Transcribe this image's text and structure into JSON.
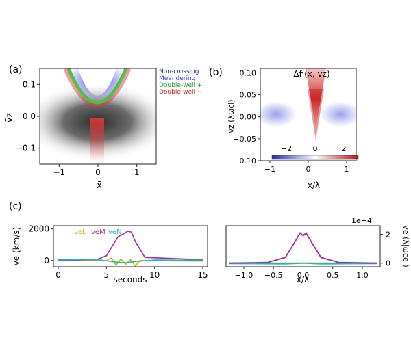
{
  "figure": {
    "panel_labels": {
      "a": "(a)",
      "b": "(b)",
      "c": "(c)"
    }
  },
  "chart_data": [
    {
      "id": "a",
      "type": "heatmap",
      "xlabel": "x̄",
      "ylabel": "v̄z",
      "xlim": [
        -1.5,
        1.5
      ],
      "ylim": [
        -0.15,
        0.15
      ],
      "xticks": [
        -1,
        0,
        1
      ],
      "yticks": [
        0.1,
        0.0,
        -0.1
      ],
      "legend_position": "right",
      "legend": [
        {
          "name": "Non-crossing",
          "color": "#1f2f7a"
        },
        {
          "name": "Meandering",
          "color": "#3b3fd6"
        },
        {
          "name": "Double-well +",
          "color": "#2e9b2e"
        },
        {
          "name": "Double-well −",
          "color": "#d02222"
        }
      ]
    },
    {
      "id": "b",
      "type": "heatmap",
      "title": "Δfi(x, vz)",
      "xlabel": "x/λ",
      "ylabel": "vz (λωci)",
      "xlim": [
        -1.25,
        1.25
      ],
      "ylim": [
        -0.1,
        0.11
      ],
      "xticks": [
        -1,
        0,
        1
      ],
      "yticks": [
        0.1,
        0.05,
        0.0,
        -0.05,
        -0.1
      ],
      "colorbar": {
        "ticks": [
          -2,
          0,
          2
        ],
        "range": [
          -3,
          3
        ],
        "low_color": "#2b2ba8",
        "high_color": "#b01515"
      }
    },
    {
      "id": "c-left",
      "type": "line",
      "xlabel": "seconds",
      "ylabel": "ve (km/s)",
      "xlim": [
        -0.5,
        15.5
      ],
      "ylim": [
        -400,
        2200
      ],
      "xticks": [
        0,
        5,
        10,
        15
      ],
      "yticks": [
        2000,
        0
      ],
      "legend_position": "top-left",
      "series": [
        {
          "name": "veL",
          "color": "#c8b400",
          "x": [
            0,
            5,
            5.5,
            6,
            6.5,
            7,
            7.5,
            8,
            8.5,
            15
          ],
          "y": [
            -20,
            0,
            150,
            -300,
            100,
            -250,
            50,
            -350,
            0,
            -40
          ]
        },
        {
          "name": "veM",
          "color": "#9b2c9b",
          "x": [
            0,
            4,
            5,
            6.2,
            6.8,
            7.2,
            7.6,
            8.0,
            9,
            15
          ],
          "y": [
            0,
            60,
            300,
            1500,
            1700,
            1850,
            1800,
            1200,
            200,
            50
          ]
        },
        {
          "name": "veN",
          "color": "#2ab0b8",
          "x": [
            0,
            4,
            6,
            7,
            8,
            10,
            15
          ],
          "y": [
            40,
            60,
            -100,
            -150,
            -60,
            30,
            20
          ]
        }
      ]
    },
    {
      "id": "c-right",
      "type": "line",
      "xlabel": "x/λ",
      "ylabel": "ve (λ|ωce|)",
      "scale_label": "1e−4",
      "xlim": [
        -1.3,
        1.3
      ],
      "ylim": [
        -0.25,
        2.6
      ],
      "xticks": [
        -1.0,
        -0.5,
        0.0,
        0.5,
        1.0
      ],
      "yticks": [
        2,
        0
      ],
      "series": [
        {
          "color": "#9b2c9b",
          "x": [
            -1.25,
            -0.6,
            -0.3,
            -0.15,
            -0.05,
            0.0,
            0.05,
            0.15,
            0.3,
            0.6,
            1.25
          ],
          "y": [
            0,
            0.05,
            0.4,
            1.4,
            2.1,
            1.9,
            2.1,
            1.4,
            0.4,
            0.05,
            0
          ]
        },
        {
          "color": "#2ab0b8",
          "x": [
            -1.25,
            -0.3,
            0,
            0.3,
            1.25
          ],
          "y": [
            -0.03,
            -0.05,
            0.0,
            -0.05,
            -0.03
          ]
        },
        {
          "color": "#c8b400",
          "x": [
            -1.25,
            0,
            1.25
          ],
          "y": [
            0.0,
            0.0,
            0.0
          ]
        }
      ]
    }
  ]
}
